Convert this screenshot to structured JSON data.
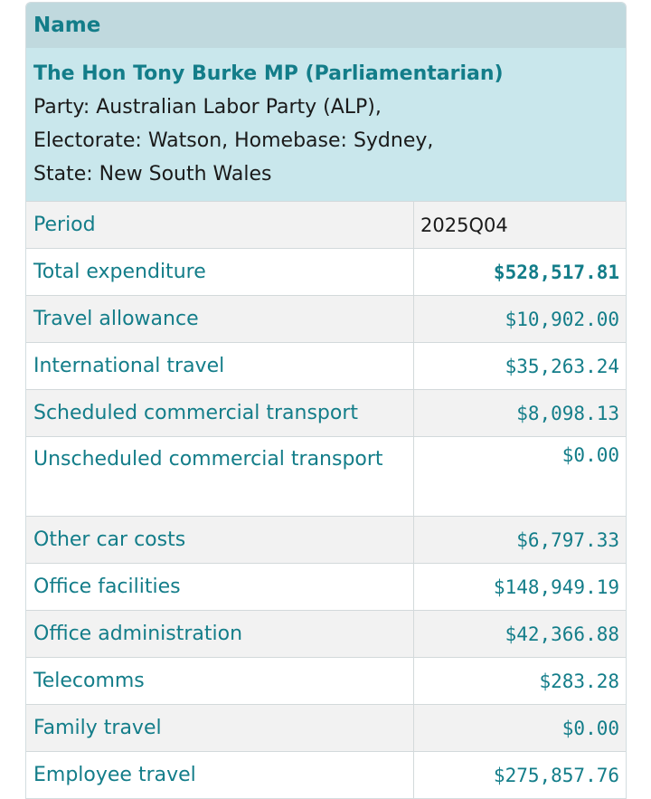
{
  "header": {
    "name_label": "Name"
  },
  "member": {
    "name": "The Hon Tony Burke MP (Parliamentarian)",
    "party": "Party: Australian Labor Party (ALP),",
    "electorate_homebase": "Electorate: Watson,  Homebase: Sydney,",
    "state": "State: New South Wales"
  },
  "rows": [
    {
      "label": "Period",
      "value": "2025Q04"
    },
    {
      "label": "Total expenditure",
      "value": "$528,517.81"
    },
    {
      "label": "Travel allowance",
      "value": "$10,902.00"
    },
    {
      "label": "International travel",
      "value": "$35,263.24"
    },
    {
      "label": "Scheduled commercial transport",
      "value": "$8,098.13"
    },
    {
      "label": "Unscheduled commercial transport",
      "value": "$0.00"
    },
    {
      "label": "Other car costs",
      "value": "$6,797.33"
    },
    {
      "label": "Office facilities",
      "value": "$148,949.19"
    },
    {
      "label": "Office administration",
      "value": "$42,366.88"
    },
    {
      "label": "Telecomms",
      "value": "$283.28"
    },
    {
      "label": "Family travel",
      "value": "$0.00"
    },
    {
      "label": "Employee travel",
      "value": "$275,857.76"
    }
  ]
}
